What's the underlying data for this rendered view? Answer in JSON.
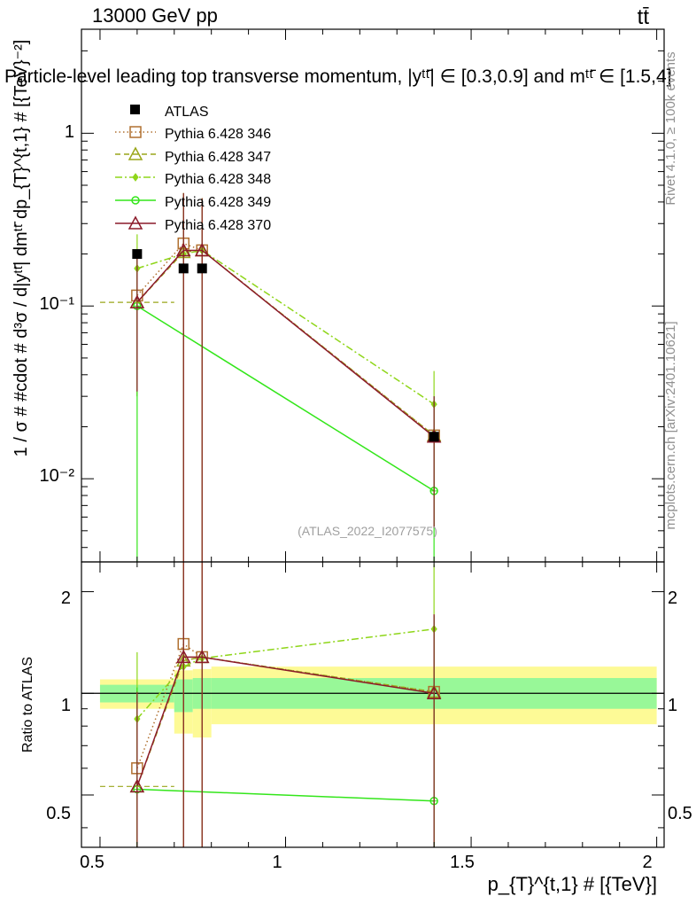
{
  "header": {
    "energy_label": "13000 GeV pp",
    "process_label": "tt̄",
    "title": "Particle-level leading top transverse momentum, |yᵗᵗ̄| ∈ [0.3,0.9] and mᵗᵗ̄ ∈ [1.5,4]",
    "watermark": "(ATLAS_2022_I2077575)"
  },
  "side": {
    "rivet": "Rivet 4.1.0, ≥ 100k events",
    "mcplots": "mcplots.cern.ch [arXiv:2401.10621]"
  },
  "axes": {
    "main_ylabel": "1 / σ # #cdot # d³σ / d|yᵗᵗ̄| dmᵗᵗ̄ dp_{T}^{t,1} # [{TeV}⁻²]",
    "ratio_ylabel": "Ratio to ATLAS",
    "xlabel": "p_{T}^{t,1} # [{TeV}]",
    "x_ticks": [
      "0.5",
      "1",
      "1.5",
      "2"
    ],
    "main_y_ticks": [
      "10⁻²",
      "10⁻¹",
      "1"
    ],
    "ratio_y_ticks": [
      "0.5",
      "1",
      "2"
    ]
  },
  "legend": [
    {
      "label": "ATLAS"
    },
    {
      "label": "Pythia 6.428 346"
    },
    {
      "label": "Pythia 6.428 347"
    },
    {
      "label": "Pythia 6.428 348"
    },
    {
      "label": "Pythia 6.428 349"
    },
    {
      "label": "Pythia 6.428 370"
    }
  ],
  "chart_data": {
    "type": "scatter",
    "xlim": [
      0.45,
      2.02
    ],
    "ylim_log": [
      0.0033,
      4.0
    ],
    "ratio_ylim_log": [
      0.35,
      2.45
    ],
    "data": {
      "name": "ATLAS",
      "x": [
        0.6,
        0.725,
        0.775,
        1.4
      ],
      "y": [
        0.2,
        0.165,
        0.165,
        0.0175
      ],
      "xlo": [
        0.5,
        0.7,
        0.75,
        0.8
      ],
      "xhi": [
        0.7,
        0.75,
        0.8,
        2.0
      ],
      "band_inner": [
        [
          0.94,
          1.06
        ],
        [
          0.88,
          1.1
        ],
        [
          0.9,
          1.11
        ],
        [
          0.9,
          1.11
        ]
      ],
      "band_outer": [
        [
          0.9,
          1.1
        ],
        [
          0.76,
          1.17
        ],
        [
          0.74,
          1.18
        ],
        [
          0.81,
          1.2
        ]
      ]
    },
    "series": [
      {
        "name": "Pythia 6.428 346",
        "color": "#b07030",
        "marker": "square",
        "dash": "1.5,3",
        "x": [
          0.6,
          0.725,
          0.775,
          1.4
        ],
        "y": [
          0.115,
          0.23,
          0.21,
          0.0178
        ],
        "ylo": [
          0.03,
          0.0033,
          0.0033,
          0.0053
        ],
        "yhi": [
          0.2,
          0.45,
          0.42,
          0.03
        ],
        "ratio": [
          0.6,
          1.4,
          1.28,
          1.01
        ]
      },
      {
        "name": "Pythia 6.428 347",
        "color": "#9aa61a",
        "marker": "triangle",
        "dash": "6,4",
        "x": [
          0.6,
          0.725,
          0.775,
          1.4
        ],
        "y": [
          0.105,
          0.205,
          0.21,
          0.0178
        ],
        "ylo": [
          0.03,
          0.0033,
          0.0033,
          0.0053
        ],
        "yhi": [
          0.2,
          0.45,
          0.42,
          0.03
        ],
        "ratio": [
          0.53,
          1.25,
          1.28,
          1.01
        ]
      },
      {
        "name": "Pythia 6.428 348",
        "color": "#8fd61a",
        "marker": "diamond",
        "dash": "8,3,2,3",
        "x": [
          0.6,
          0.725,
          0.775,
          1.4
        ],
        "y": [
          0.165,
          0.2,
          0.21,
          0.027
        ],
        "ylo": [
          0.07,
          0.0033,
          0.0033,
          0.0053
        ],
        "yhi": [
          0.26,
          0.45,
          0.42,
          0.042
        ],
        "ratio": [
          0.84,
          1.2,
          1.27,
          1.55
        ]
      },
      {
        "name": "Pythia 6.428 349",
        "color": "#33e61a",
        "marker": "circle",
        "dash": "",
        "x": [
          0.6,
          1.4
        ],
        "y": [
          0.1,
          0.0085
        ],
        "ylo": [
          0.0033,
          0.0033
        ],
        "yhi": [
          0.2,
          0.03
        ],
        "ratio": [
          0.52,
          0.48
        ]
      },
      {
        "name": "Pythia 6.428 370",
        "color": "#8b1a2a",
        "marker": "triangle",
        "dash": "",
        "x": [
          0.6,
          0.725,
          0.775,
          1.4
        ],
        "y": [
          0.105,
          0.21,
          0.21,
          0.0175
        ],
        "ylo": [
          0.032,
          0.0033,
          0.0033,
          0.0052
        ],
        "yhi": [
          0.2,
          0.45,
          0.42,
          0.03
        ],
        "ratio": [
          0.53,
          1.28,
          1.28,
          1.0
        ]
      }
    ]
  }
}
